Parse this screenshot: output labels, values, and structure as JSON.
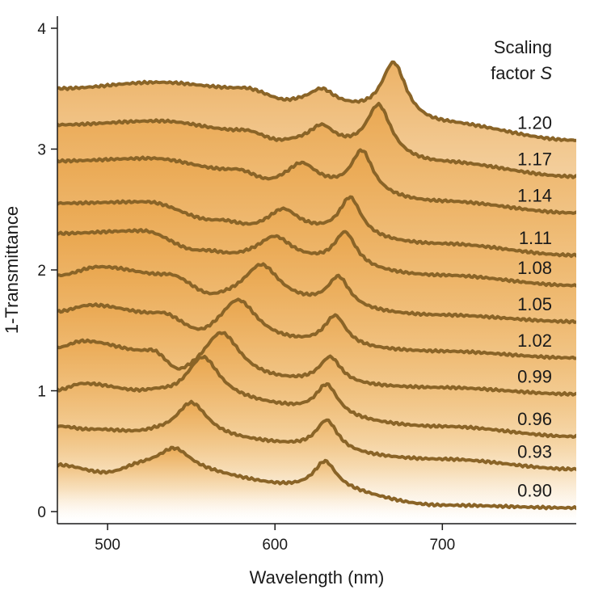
{
  "chart_data": {
    "type": "line",
    "title": "",
    "xlabel": "Wavelength (nm)",
    "ylabel": "1-Transmittance",
    "xlim": [
      470,
      780
    ],
    "ylim": [
      -0.1,
      4.1
    ],
    "xticks": [
      500,
      600,
      700
    ],
    "yticks": [
      0,
      1,
      2,
      3,
      4
    ],
    "legend_title_line1": "Scaling",
    "legend_title_line2": "factor ",
    "legend_title_symbol": "S",
    "colors": {
      "line": "#8a6427",
      "fill_top": "#e9a44a",
      "fill_bottom": "#ffffff"
    },
    "series": [
      {
        "name": "1.20",
        "offset": 3.5,
        "start": 0.0,
        "bg": [
          [
            470,
            0.0
          ],
          [
            530,
            0.05
          ],
          [
            580,
            0.0
          ],
          [
            610,
            -0.12
          ],
          [
            700,
            -0.3
          ],
          [
            780,
            -0.43
          ]
        ],
        "peaks": [
          [
            628,
            0.12,
            9
          ],
          [
            671,
            0.47,
            9
          ]
        ]
      },
      {
        "name": "1.17",
        "offset": 3.2,
        "start": 0.0,
        "bg": [
          [
            470,
            0.0
          ],
          [
            530,
            0.03
          ],
          [
            580,
            -0.05
          ],
          [
            605,
            -0.15
          ],
          [
            700,
            -0.32
          ],
          [
            780,
            -0.43
          ]
        ],
        "peaks": [
          [
            628,
            0.15,
            9
          ],
          [
            662,
            0.42,
            9
          ]
        ]
      },
      {
        "name": "1.14",
        "offset": 2.9,
        "start": 0.0,
        "bg": [
          [
            470,
            0.0
          ],
          [
            525,
            0.02
          ],
          [
            575,
            -0.08
          ],
          [
            600,
            -0.2
          ],
          [
            700,
            -0.34
          ],
          [
            780,
            -0.43
          ]
        ],
        "peaks": [
          [
            616,
            0.18,
            11
          ],
          [
            652,
            0.35,
            8
          ]
        ]
      },
      {
        "name": "1.11",
        "offset": 2.55,
        "start": 0.0,
        "bg": [
          [
            470,
            0.0
          ],
          [
            522,
            0.01
          ],
          [
            565,
            -0.15
          ],
          [
            590,
            -0.22
          ],
          [
            700,
            -0.34
          ],
          [
            780,
            -0.43
          ]
        ],
        "peaks": [
          [
            605,
            0.17,
            11
          ],
          [
            645,
            0.32,
            8
          ]
        ]
      },
      {
        "name": "1.08",
        "offset": 2.3,
        "start": 0.0,
        "bg": [
          [
            470,
            0.0
          ],
          [
            520,
            0.02
          ],
          [
            555,
            -0.15
          ],
          [
            580,
            -0.2
          ],
          [
            700,
            -0.35
          ],
          [
            780,
            -0.43
          ]
        ],
        "peaks": [
          [
            600,
            0.18,
            12
          ],
          [
            642,
            0.28,
            8
          ]
        ]
      },
      {
        "name": "1.05",
        "offset": 2.0,
        "start": -0.05,
        "bg": [
          [
            470,
            -0.05
          ],
          [
            495,
            0.02
          ],
          [
            535,
            -0.05
          ],
          [
            565,
            -0.25
          ],
          [
            700,
            -0.38
          ],
          [
            780,
            -0.43
          ]
        ],
        "peaks": [
          [
            592,
            0.3,
            13
          ],
          [
            638,
            0.25,
            8
          ]
        ]
      },
      {
        "name": "1.02",
        "offset": 1.7,
        "start": -0.05,
        "bg": [
          [
            470,
            -0.05
          ],
          [
            490,
            0.0
          ],
          [
            530,
            -0.08
          ],
          [
            560,
            -0.3
          ],
          [
            700,
            -0.38
          ],
          [
            780,
            -0.43
          ]
        ],
        "peaks": [
          [
            578,
            0.35,
            14
          ],
          [
            636,
            0.25,
            8
          ]
        ]
      },
      {
        "name": "0.99",
        "offset": 1.4,
        "start": -0.05,
        "bg": [
          [
            470,
            -0.05
          ],
          [
            485,
            0.0
          ],
          [
            525,
            -0.1
          ],
          [
            545,
            -0.32
          ],
          [
            700,
            -0.38
          ],
          [
            780,
            -0.43
          ]
        ],
        "peaks": [
          [
            568,
            0.4,
            14
          ],
          [
            633,
            0.22,
            8
          ]
        ]
      },
      {
        "name": "0.96",
        "offset": 1.05,
        "start": -0.05,
        "bg": [
          [
            470,
            -0.05
          ],
          [
            485,
            0.0
          ],
          [
            525,
            -0.08
          ],
          [
            545,
            -0.12
          ],
          [
            700,
            -0.35
          ],
          [
            780,
            -0.43
          ]
        ],
        "peaks": [
          [
            557,
            0.35,
            12
          ],
          [
            631,
            0.25,
            8
          ]
        ]
      },
      {
        "name": "0.93",
        "offset": 0.75,
        "start": -0.05,
        "bg": [
          [
            470,
            -0.05
          ],
          [
            490,
            -0.08
          ],
          [
            525,
            -0.12
          ],
          [
            545,
            -0.15
          ],
          [
            700,
            -0.32
          ],
          [
            780,
            -0.4
          ]
        ],
        "peaks": [
          [
            550,
            0.3,
            12
          ],
          [
            631,
            0.25,
            8
          ]
        ]
      },
      {
        "name": "0.90",
        "offset": 0.38,
        "start": -0.05,
        "bg": [
          [
            470,
            0.0
          ],
          [
            500,
            -0.07
          ],
          [
            520,
            -0.02
          ],
          [
            545,
            -0.06
          ],
          [
            620,
            -0.18
          ],
          [
            700,
            -0.33
          ],
          [
            780,
            -0.35
          ]
        ],
        "peaks": [
          [
            540,
            0.2,
            12
          ],
          [
            630,
            0.22,
            8
          ]
        ]
      }
    ]
  }
}
